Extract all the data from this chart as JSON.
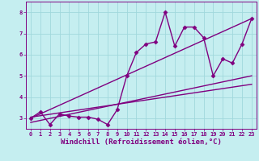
{
  "title": "",
  "xlabel": "Windchill (Refroidissement éolien,°C)",
  "xlim": [
    -0.5,
    23.5
  ],
  "ylim": [
    2.5,
    8.5
  ],
  "yticks": [
    3,
    4,
    5,
    6,
    7,
    8
  ],
  "xticks": [
    0,
    1,
    2,
    3,
    4,
    5,
    6,
    7,
    8,
    9,
    10,
    11,
    12,
    13,
    14,
    15,
    16,
    17,
    18,
    19,
    20,
    21,
    22,
    23
  ],
  "bg_color": "#c5eef0",
  "line_color": "#800080",
  "grid_color": "#a0d8dc",
  "data_x": [
    0,
    1,
    2,
    3,
    4,
    5,
    6,
    7,
    8,
    9,
    10,
    11,
    12,
    13,
    14,
    15,
    16,
    17,
    18,
    19,
    20,
    21,
    22,
    23
  ],
  "data_y": [
    3.0,
    3.3,
    2.7,
    3.2,
    3.1,
    3.05,
    3.05,
    2.95,
    2.7,
    3.4,
    5.0,
    6.1,
    6.5,
    6.6,
    8.0,
    6.4,
    7.3,
    7.3,
    6.8,
    5.0,
    5.8,
    5.6,
    6.5,
    7.7
  ],
  "trend1_x": [
    0,
    23
  ],
  "trend1_y": [
    3.0,
    7.7
  ],
  "trend2_x": [
    0,
    23
  ],
  "trend2_y": [
    2.8,
    5.0
  ],
  "trend3_x": [
    0,
    23
  ],
  "trend3_y": [
    3.05,
    4.6
  ],
  "marker": "D",
  "markersize": 2.5,
  "linewidth": 1.0,
  "tick_fontsize": 5.0,
  "xlabel_fontsize": 6.5
}
